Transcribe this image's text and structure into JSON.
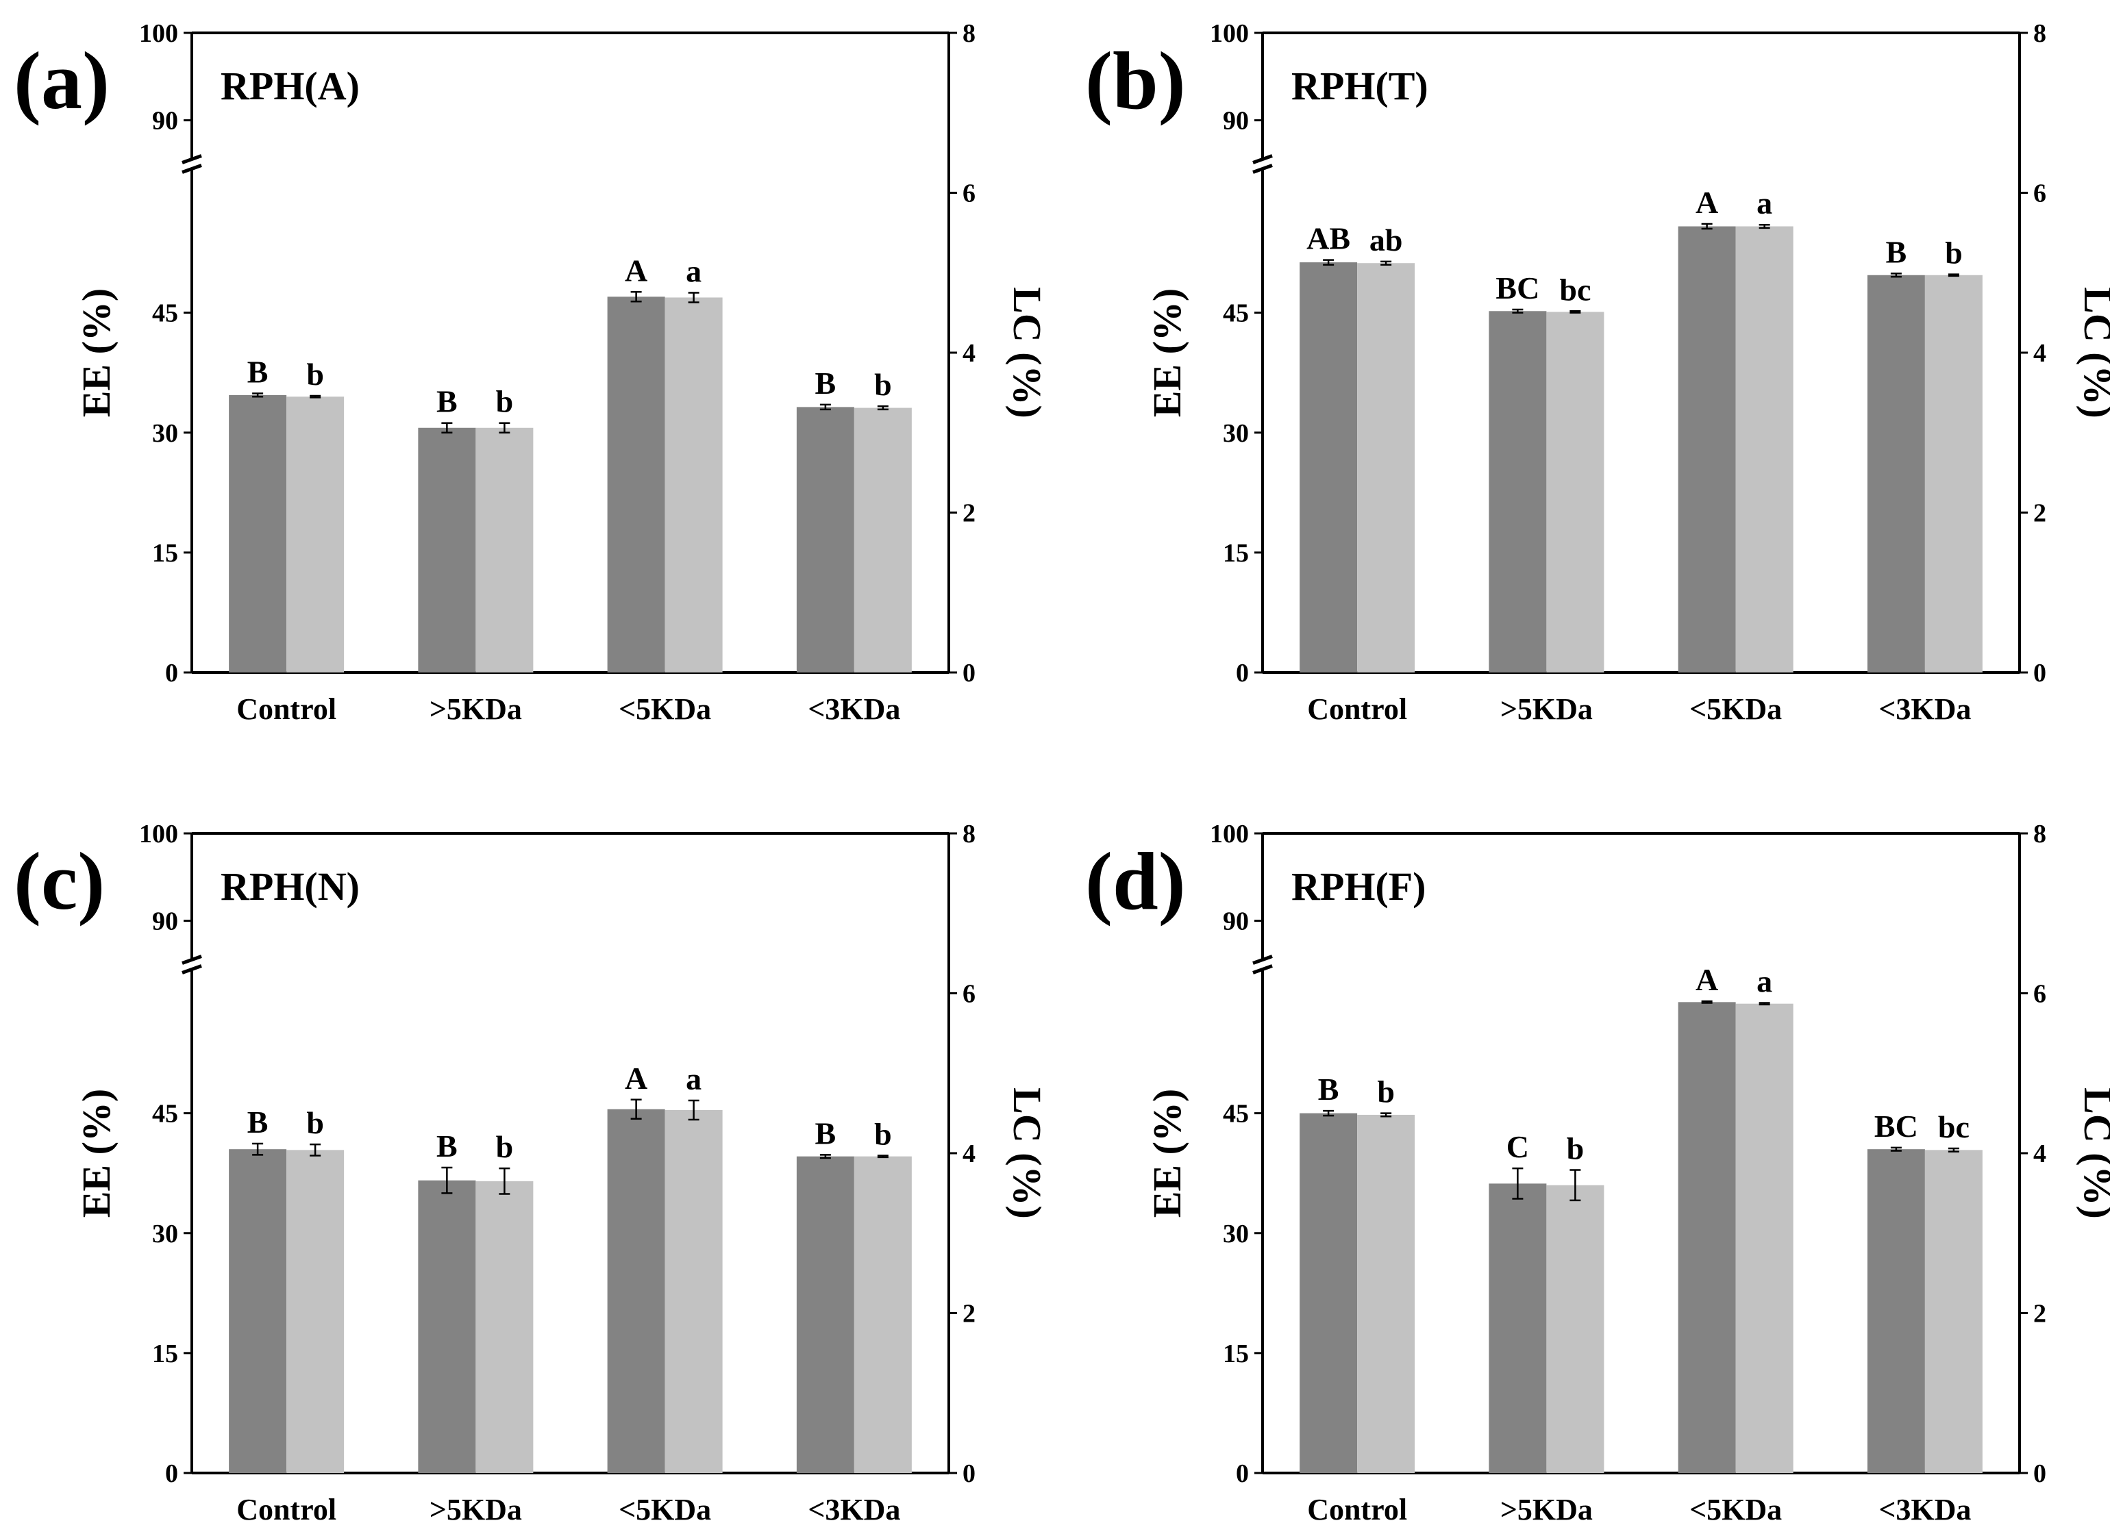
{
  "figure": {
    "series_colors": {
      "EE": "#838383",
      "LC": "#c2c2c2"
    }
  },
  "chart_data": [
    {
      "type": "bar",
      "panel_label": "(a)",
      "title": "RPH(A)",
      "categories": [
        "Control",
        ">5KDa",
        "<5KDa",
        "<3KDa"
      ],
      "ylabel": "EE (%)",
      "ylabel_right": "LC (%)",
      "y_lower_range": [
        0,
        60
      ],
      "y_break": true,
      "y_upper_range": [
        85,
        100
      ],
      "y_ticks": [
        0,
        15,
        30,
        45,
        90,
        100
      ],
      "y_right_range": [
        0,
        8
      ],
      "y_right_ticks": [
        0,
        2,
        4,
        6,
        8
      ],
      "series": [
        {
          "name": "EE",
          "axis": "left",
          "values": [
            34.7,
            30.6,
            47.0,
            33.2
          ],
          "errors": [
            0.2,
            0.6,
            0.6,
            0.3
          ],
          "letters": [
            "B",
            "B",
            "A",
            "B"
          ]
        },
        {
          "name": "LC",
          "axis": "right",
          "values": [
            3.45,
            3.06,
            4.69,
            3.31
          ],
          "errors": [
            0.01,
            0.06,
            0.06,
            0.02
          ],
          "letters": [
            "b",
            "b",
            "a",
            "b"
          ]
        }
      ]
    },
    {
      "type": "bar",
      "panel_label": "(b)",
      "title": "RPH(T)",
      "categories": [
        "Control",
        ">5KDa",
        "<5KDa",
        "<3KDa"
      ],
      "ylabel": "EE (%)",
      "ylabel_right": "LC (%)",
      "y_lower_range": [
        0,
        60
      ],
      "y_break": true,
      "y_upper_range": [
        85,
        100
      ],
      "y_ticks": [
        0,
        15,
        30,
        45,
        90,
        100
      ],
      "y_right_range": [
        0,
        8
      ],
      "y_right_ticks": [
        0,
        2,
        4,
        6,
        8
      ],
      "series": [
        {
          "name": "EE",
          "axis": "left",
          "values": [
            51.3,
            45.2,
            55.8,
            49.7
          ],
          "errors": [
            0.3,
            0.2,
            0.3,
            0.2
          ],
          "letters": [
            "AB",
            "BC",
            "A",
            "B"
          ]
        },
        {
          "name": "LC",
          "axis": "right",
          "values": [
            5.12,
            4.51,
            5.58,
            4.97
          ],
          "errors": [
            0.02,
            0.01,
            0.02,
            0.01
          ],
          "letters": [
            "ab",
            "bc",
            "a",
            "b"
          ]
        }
      ]
    },
    {
      "type": "bar",
      "panel_label": "(c)",
      "title": "RPH(N)",
      "categories": [
        "Control",
        ">5KDa",
        "<5KDa",
        "<3KDa"
      ],
      "ylabel": "EE (%)",
      "ylabel_right": "LC (%)",
      "y_lower_range": [
        0,
        60
      ],
      "y_break": true,
      "y_upper_range": [
        85,
        100
      ],
      "y_ticks": [
        0,
        15,
        30,
        45,
        90,
        100
      ],
      "y_right_range": [
        0,
        8
      ],
      "y_right_ticks": [
        0,
        2,
        4,
        6,
        8
      ],
      "series": [
        {
          "name": "EE",
          "axis": "left",
          "values": [
            40.5,
            36.6,
            45.5,
            39.6
          ],
          "errors": [
            0.7,
            1.6,
            1.2,
            0.2
          ],
          "letters": [
            "B",
            "B",
            "A",
            "B"
          ]
        },
        {
          "name": "LC",
          "axis": "right",
          "values": [
            4.04,
            3.65,
            4.54,
            3.96
          ],
          "errors": [
            0.07,
            0.16,
            0.12,
            0.01
          ],
          "letters": [
            "b",
            "b",
            "a",
            "b"
          ]
        }
      ]
    },
    {
      "type": "bar",
      "panel_label": "(d)",
      "title": "RPH(F)",
      "categories": [
        "Control",
        ">5KDa",
        "<5KDa",
        "<3KDa"
      ],
      "ylabel": "EE (%)",
      "ylabel_right": "LC (%)",
      "y_lower_range": [
        0,
        60
      ],
      "y_break": true,
      "y_upper_range": [
        85,
        100
      ],
      "y_ticks": [
        0,
        15,
        30,
        45,
        90,
        100
      ],
      "y_right_range": [
        0,
        8
      ],
      "y_right_ticks": [
        0,
        2,
        4,
        6,
        8
      ],
      "series": [
        {
          "name": "EE",
          "axis": "left",
          "values": [
            45.0,
            36.2,
            58.9,
            40.5
          ],
          "errors": [
            0.3,
            1.9,
            0.1,
            0.2
          ],
          "letters": [
            "B",
            "C",
            "A",
            "BC"
          ]
        },
        {
          "name": "LC",
          "axis": "right",
          "values": [
            4.48,
            3.6,
            5.87,
            4.04
          ],
          "errors": [
            0.02,
            0.19,
            0.01,
            0.02
          ],
          "letters": [
            "b",
            "b",
            "a",
            "bc"
          ]
        }
      ]
    }
  ]
}
